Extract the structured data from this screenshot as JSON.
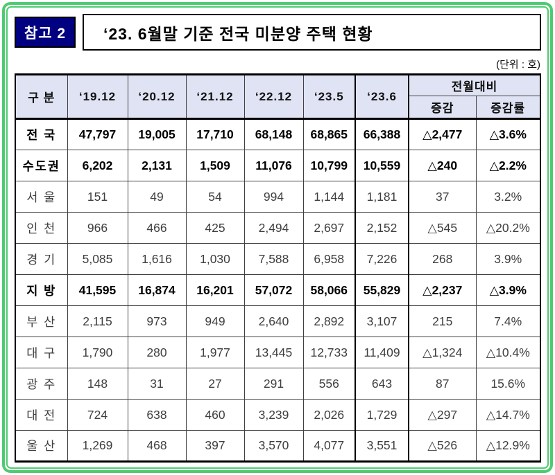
{
  "page": {
    "badge": "참고 2",
    "title": "‘23. 6월말 기준 전국 미분양 주택 현황",
    "unit_note": "(단위 : 호)"
  },
  "table": {
    "columns": [
      "구 분",
      "‘19.12",
      "‘20.12",
      "‘21.12",
      "‘22.12",
      "‘23.5",
      "‘23.6"
    ],
    "group_header": "전월대비",
    "sub_columns": [
      "증감",
      "증감률"
    ],
    "rows": [
      {
        "label": "전 국",
        "type": "summary",
        "values": [
          "47,797",
          "19,005",
          "17,710",
          "68,148",
          "68,865",
          "66,388",
          "△2,477",
          "△3.6%"
        ]
      },
      {
        "label": "수도권",
        "type": "summary",
        "values": [
          "6,202",
          "2,131",
          "1,509",
          "11,076",
          "10,799",
          "10,559",
          "△240",
          "△2.2%"
        ]
      },
      {
        "label": "서 울",
        "type": "city",
        "values": [
          "151",
          "49",
          "54",
          "994",
          "1,144",
          "1,181",
          "37",
          "3.2%"
        ]
      },
      {
        "label": "인 천",
        "type": "city",
        "values": [
          "966",
          "466",
          "425",
          "2,494",
          "2,697",
          "2,152",
          "△545",
          "△20.2%"
        ]
      },
      {
        "label": "경 기",
        "type": "city",
        "values": [
          "5,085",
          "1,616",
          "1,030",
          "7,588",
          "6,958",
          "7,226",
          "268",
          "3.9%"
        ]
      },
      {
        "label": "지 방",
        "type": "summary",
        "values": [
          "41,595",
          "16,874",
          "16,201",
          "57,072",
          "58,066",
          "55,829",
          "△2,237",
          "△3.9%"
        ]
      },
      {
        "label": "부 산",
        "type": "city",
        "values": [
          "2,115",
          "973",
          "949",
          "2,640",
          "2,892",
          "3,107",
          "215",
          "7.4%"
        ]
      },
      {
        "label": "대 구",
        "type": "city",
        "values": [
          "1,790",
          "280",
          "1,977",
          "13,445",
          "12,733",
          "11,409",
          "△1,324",
          "△10.4%"
        ]
      },
      {
        "label": "광 주",
        "type": "city",
        "values": [
          "148",
          "31",
          "27",
          "291",
          "556",
          "643",
          "87",
          "15.6%"
        ]
      },
      {
        "label": "대 전",
        "type": "city",
        "values": [
          "724",
          "638",
          "460",
          "3,239",
          "2,026",
          "1,729",
          "△297",
          "△14.7%"
        ]
      },
      {
        "label": "울 산",
        "type": "city",
        "values": [
          "1,269",
          "468",
          "397",
          "3,570",
          "4,077",
          "3,551",
          "△526",
          "△12.9%"
        ]
      }
    ]
  },
  "colors": {
    "frame_green": "#4ecb71",
    "badge_navy": "#000080",
    "header_bg": "#dfe3f3",
    "decrease_symbol": "△"
  }
}
